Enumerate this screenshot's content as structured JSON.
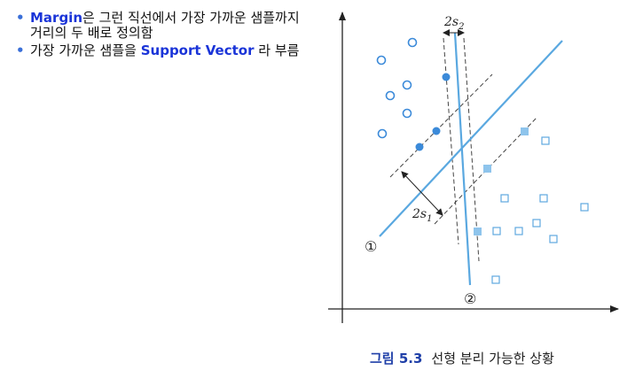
{
  "bullets": [
    {
      "keyword": "Margin",
      "text": "은 그런 직선에서 가장 가까운 샘플까지 거리의 두 배로 정의함"
    },
    {
      "before": "가장 가까운 샘플을 ",
      "keyword": "Support Vector",
      "after": " 라 부름"
    }
  ],
  "figure": {
    "label_2s1": "2s",
    "label_2s1_sub": "1",
    "label_2s2": "2s",
    "label_2s2_sub": "2",
    "line_labels": [
      "①",
      "②"
    ]
  },
  "caption": {
    "number": "그림 5.3",
    "text": "선형 분리 가능한 상황"
  },
  "colors": {
    "circle": "#3b8ad9",
    "square": "#5fa8e0",
    "boundary": "#5aa8e0",
    "dashed": "#444444",
    "keyword": "#1a34d8"
  }
}
